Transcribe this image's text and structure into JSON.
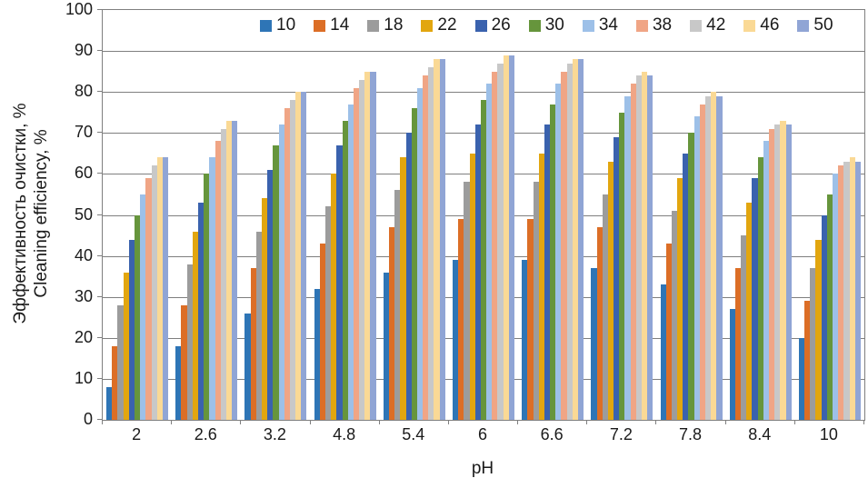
{
  "chart_data": {
    "type": "bar",
    "title": "",
    "xlabel": "pH",
    "ylabel_line1": "Эффективность очистки, %",
    "ylabel_line2": "Cleaning efficiency, %",
    "ylim": [
      0,
      100
    ],
    "ytick_step": 10,
    "grid": "horizontal",
    "legend_position": "top-inside",
    "categories": [
      "2",
      "2.6",
      "3.2",
      "4.8",
      "5.4",
      "6",
      "6.6",
      "7.2",
      "7.8",
      "8.4",
      "10"
    ],
    "series": [
      {
        "name": "10",
        "color": "#2E75B6",
        "values": [
          8,
          18,
          26,
          32,
          36,
          39,
          39,
          37,
          33,
          27,
          20
        ]
      },
      {
        "name": "14",
        "color": "#DC6E26",
        "values": [
          18,
          28,
          37,
          43,
          47,
          49,
          49,
          47,
          43,
          37,
          29
        ]
      },
      {
        "name": "18",
        "color": "#9C9C9C",
        "values": [
          28,
          38,
          46,
          52,
          56,
          58,
          58,
          55,
          51,
          45,
          37
        ]
      },
      {
        "name": "22",
        "color": "#E2A60F",
        "values": [
          36,
          46,
          54,
          60,
          64,
          65,
          65,
          63,
          59,
          53,
          44
        ]
      },
      {
        "name": "26",
        "color": "#3A62AE",
        "values": [
          44,
          53,
          61,
          67,
          70,
          72,
          72,
          69,
          65,
          59,
          50
        ]
      },
      {
        "name": "30",
        "color": "#66953C",
        "values": [
          50,
          60,
          67,
          73,
          76,
          78,
          77,
          75,
          70,
          64,
          55
        ]
      },
      {
        "name": "34",
        "color": "#9DC0E8",
        "values": [
          55,
          64,
          72,
          77,
          81,
          82,
          82,
          79,
          74,
          68,
          60
        ]
      },
      {
        "name": "38",
        "color": "#F0A585",
        "values": [
          59,
          68,
          76,
          81,
          84,
          85,
          85,
          82,
          77,
          71,
          62
        ]
      },
      {
        "name": "42",
        "color": "#C8C8C8",
        "values": [
          62,
          71,
          78,
          83,
          86,
          87,
          87,
          84,
          79,
          72,
          63
        ]
      },
      {
        "name": "46",
        "color": "#FAD995",
        "values": [
          64,
          73,
          80,
          85,
          88,
          89,
          88,
          85,
          80,
          73,
          64
        ]
      },
      {
        "name": "50",
        "color": "#90A5D5",
        "values": [
          64,
          73,
          80,
          85,
          88,
          89,
          88,
          84,
          79,
          72,
          63
        ]
      }
    ]
  }
}
